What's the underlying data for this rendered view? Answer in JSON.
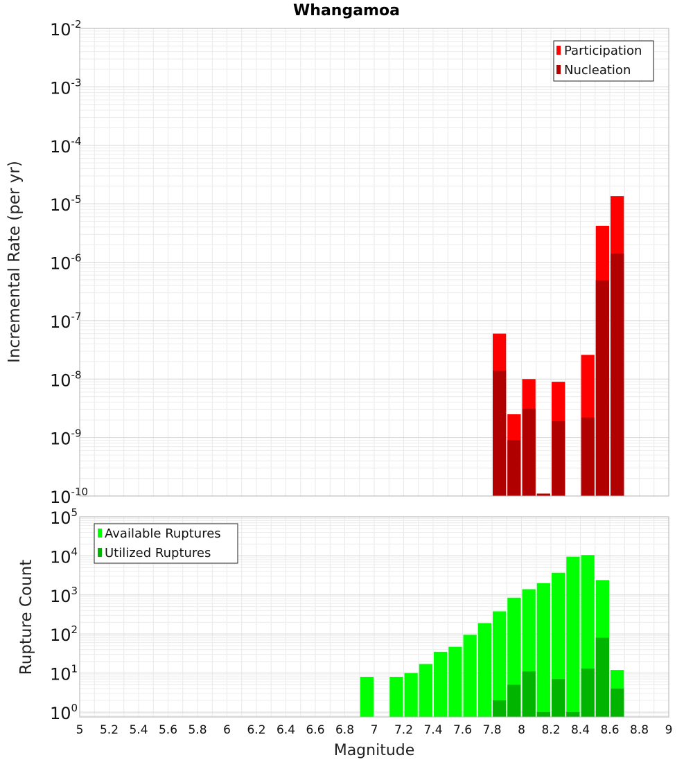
{
  "title": "Whangamoa",
  "x_axis_label": "Magnitude",
  "chart_data": [
    {
      "type": "bar",
      "ylabel": "Incremental Rate (per yr)",
      "yscale": "log",
      "ylim": [
        1e-10,
        0.01
      ],
      "xlim": [
        5,
        9
      ],
      "grid": true,
      "legend_position": "top-right",
      "x_ticks": [
        "5",
        "5.2",
        "5.4",
        "5.6",
        "5.8",
        "6",
        "6.2",
        "6.4",
        "6.6",
        "6.8",
        "7",
        "7.2",
        "7.4",
        "7.6",
        "7.8",
        "8",
        "8.2",
        "8.4",
        "8.6",
        "8.8",
        "9"
      ],
      "y_ticks": [
        {
          "base": "10",
          "exp": "-10"
        },
        {
          "base": "10",
          "exp": "-9"
        },
        {
          "base": "10",
          "exp": "-8"
        },
        {
          "base": "10",
          "exp": "-7"
        },
        {
          "base": "10",
          "exp": "-6"
        },
        {
          "base": "10",
          "exp": "-5"
        },
        {
          "base": "10",
          "exp": "-4"
        },
        {
          "base": "10",
          "exp": "-3"
        },
        {
          "base": "10",
          "exp": "-2"
        }
      ],
      "x": [
        7.85,
        7.95,
        8.05,
        8.15,
        8.25,
        8.35,
        8.45,
        8.55,
        8.65
      ],
      "series": [
        {
          "name": "Participation",
          "color": "#ff0000",
          "values": [
            6e-08,
            2.5e-09,
            1e-08,
            1.1e-10,
            9e-09,
            null,
            2.6e-08,
            4.2e-06,
            1.35e-05
          ]
        },
        {
          "name": "Nucleation",
          "color": "#b00000",
          "values": [
            1.4e-08,
            9e-10,
            3.1e-09,
            1.1e-10,
            1.9e-09,
            null,
            2.2e-09,
            4.9e-07,
            1.4e-06
          ]
        }
      ]
    },
    {
      "type": "bar",
      "ylabel": "Rupture Count",
      "yscale": "log",
      "ylim": [
        0.75,
        100000.0
      ],
      "xlim": [
        5,
        9
      ],
      "grid": true,
      "legend_position": "top-left",
      "y_ticks": [
        {
          "base": "10",
          "exp": "0"
        },
        {
          "base": "10",
          "exp": "1"
        },
        {
          "base": "10",
          "exp": "2"
        },
        {
          "base": "10",
          "exp": "3"
        },
        {
          "base": "10",
          "exp": "4"
        },
        {
          "base": "10",
          "exp": "5"
        }
      ],
      "x": [
        6.95,
        7.05,
        7.15,
        7.25,
        7.35,
        7.45,
        7.55,
        7.65,
        7.75,
        7.85,
        7.95,
        8.05,
        8.15,
        8.25,
        8.35,
        8.45,
        8.55,
        8.65
      ],
      "series": [
        {
          "name": "Available Ruptures",
          "color": "#00ff00",
          "values": [
            8,
            null,
            8,
            10,
            17,
            35,
            47,
            95,
            190,
            380,
            850,
            1400,
            2000,
            3700,
            9500,
            10500,
            2400,
            12
          ]
        },
        {
          "name": "Utilized Ruptures",
          "color": "#00b400",
          "values": [
            null,
            null,
            null,
            null,
            null,
            null,
            null,
            null,
            null,
            2,
            5,
            11,
            1,
            7,
            1,
            13,
            80,
            4
          ]
        }
      ]
    }
  ]
}
